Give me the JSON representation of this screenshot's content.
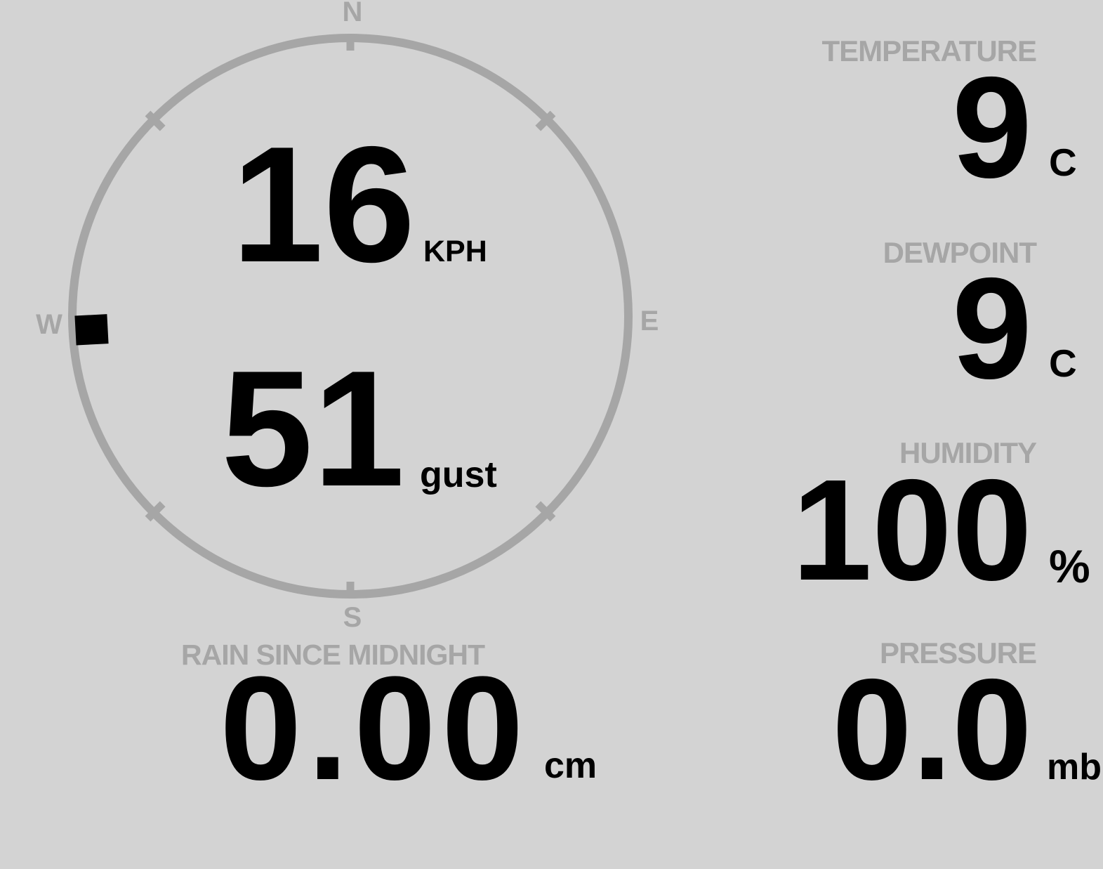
{
  "display": {
    "background_color": "#d3d3d3",
    "muted_color": "#a6a6a6",
    "value_color": "#000000"
  },
  "compass": {
    "cardinal_labels": {
      "north": "N",
      "east": "E",
      "south": "S",
      "west": "W"
    },
    "wind_direction_bearing_deg": 267,
    "wind_speed": {
      "value": "16",
      "unit": "KPH"
    },
    "wind_gust": {
      "value": "51",
      "unit": "gust"
    }
  },
  "metrics": {
    "temperature": {
      "label": "TEMPERATURE",
      "value": "9",
      "unit": "C"
    },
    "dewpoint": {
      "label": "DEWPOINT",
      "value": "9",
      "unit": "C"
    },
    "humidity": {
      "label": "HUMIDITY",
      "value": "100",
      "unit": "%"
    },
    "pressure": {
      "label": "PRESSURE",
      "value": "0.0",
      "unit": "mb"
    },
    "rain": {
      "label": "RAIN SINCE MIDNIGHT",
      "value": "0.00",
      "unit": "cm"
    }
  }
}
